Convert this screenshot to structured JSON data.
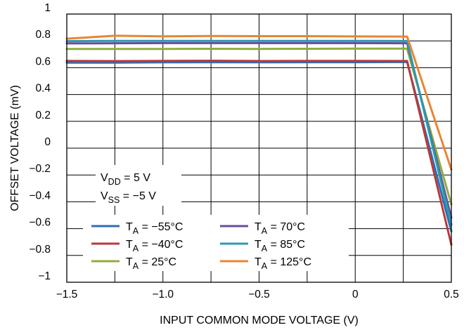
{
  "chart_data": {
    "type": "line",
    "xlabel": "INPUT COMMON MODE VOLTAGE (V)",
    "ylabel": "OFFSET VOLTAGE (mV)",
    "xlim": [
      -1.5,
      0.5
    ],
    "ylim": [
      -1,
      1
    ],
    "x_ticks": [
      -1.5,
      -1.25,
      -1.0,
      -0.75,
      -0.5,
      -0.25,
      0,
      0.25,
      0.5
    ],
    "x_tick_labels": [
      "−1.5",
      "",
      "−1.0",
      "",
      "−0.5",
      "",
      "0",
      "",
      "0.5"
    ],
    "y_ticks": [
      -1,
      -0.8,
      -0.6,
      -0.4,
      -0.2,
      0,
      0.2,
      0.4,
      0.6,
      0.8,
      1
    ],
    "y_tick_labels": [
      "−1",
      "−0.8",
      "−0.6",
      "−0.4",
      "−0.2",
      "0",
      "0.2",
      "0.4",
      "0.6",
      "0.8",
      "1"
    ],
    "grid": true,
    "conditions": {
      "vdd": {
        "main": "V",
        "sub": "DD",
        "rest": " = 5 V"
      },
      "vss": {
        "main": "V",
        "sub": "SS",
        "rest": " = −5 V"
      }
    },
    "series": [
      {
        "name": "T_A = −55°C",
        "label_main": "T",
        "label_sub": "A",
        "label_rest": " = −55°C",
        "color": "#2f6eb5",
        "x": [
          -1.5,
          -1.25,
          -1.0,
          -0.75,
          -0.5,
          -0.25,
          0,
          0.27,
          0.5
        ],
        "y": [
          0.637,
          0.637,
          0.64,
          0.641,
          0.64,
          0.641,
          0.641,
          0.643,
          -0.62
        ]
      },
      {
        "name": "T_A = −40°C",
        "label_main": "T",
        "label_sub": "A",
        "label_rest": " = −40°C",
        "color": "#b83a3a",
        "x": [
          -1.5,
          -1.25,
          -1.0,
          -0.75,
          -0.5,
          -0.25,
          0,
          0.27,
          0.5
        ],
        "y": [
          0.651,
          0.649,
          0.651,
          0.652,
          0.65,
          0.651,
          0.651,
          0.65,
          -0.72
        ]
      },
      {
        "name": "T_A = 25°C",
        "label_main": "T",
        "label_sub": "A",
        "label_rest": " = 25°C",
        "color": "#8fae3e",
        "x": [
          -1.5,
          -1.25,
          -1.0,
          -0.75,
          -0.5,
          -0.25,
          0,
          0.27,
          0.5
        ],
        "y": [
          0.74,
          0.74,
          0.74,
          0.741,
          0.74,
          0.741,
          0.742,
          0.742,
          -0.42
        ]
      },
      {
        "name": "T_A = 70°C",
        "label_main": "T",
        "label_sub": "A",
        "label_rest": " = 70°C",
        "color": "#6a4c9c",
        "x": [
          -1.5,
          -1.25,
          -1.0,
          -0.75,
          -0.5,
          -0.25,
          0,
          0.27,
          0.5
        ],
        "y": [
          0.781,
          0.782,
          0.783,
          0.783,
          0.783,
          0.783,
          0.783,
          0.782,
          -0.52
        ]
      },
      {
        "name": "T_A = 85°C",
        "label_main": "T",
        "label_sub": "A",
        "label_rest": " = 85°C",
        "color": "#2b9ab0",
        "x": [
          -1.5,
          -1.25,
          -1.0,
          -0.75,
          -0.5,
          -0.25,
          0,
          0.27,
          0.5
        ],
        "y": [
          0.798,
          0.8,
          0.8,
          0.8,
          0.8,
          0.8,
          0.8,
          0.799,
          -0.57
        ]
      },
      {
        "name": "T_A = 125°C",
        "label_main": "T",
        "label_sub": "A",
        "label_rest": " = 125°C",
        "color": "#e98532",
        "x": [
          -1.5,
          -1.25,
          -1.0,
          -0.75,
          -0.5,
          -0.25,
          0,
          0.27,
          0.5
        ],
        "y": [
          0.816,
          0.838,
          0.834,
          0.836,
          0.835,
          0.835,
          0.833,
          0.832,
          -0.16
        ]
      }
    ],
    "legend_location": "lower-left"
  }
}
